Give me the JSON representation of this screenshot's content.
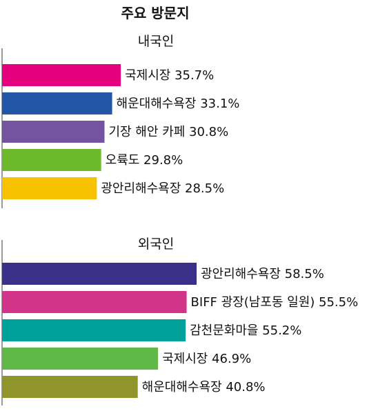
{
  "chart_data": {
    "type": "bar",
    "orientation": "horizontal",
    "title": "주요 방문지",
    "panels": [
      {
        "label": "내국인",
        "categories": [
          "국제시장",
          "해운대해수욕장",
          "기장 해안 카페",
          "오륙도",
          "광안리해수욕장"
        ],
        "values": [
          35.7,
          33.1,
          30.8,
          29.8,
          28.5
        ],
        "bar_labels": [
          "국제시장 35.7%",
          "해운대해수욕장 33.1%",
          "기장 해안 카페 30.8%",
          "오륙도 29.8%",
          "광안리해수욕장 28.5%"
        ],
        "colors": [
          "#e5007e",
          "#2356a6",
          "#7453a1",
          "#6cba2c",
          "#f8c200"
        ]
      },
      {
        "label": "외국인",
        "categories": [
          "광안리해수욕장",
          "BIFF 광장(남포동 일원)",
          "감천문화마을",
          "국제시장",
          "해운대해수욕장"
        ],
        "values": [
          58.5,
          55.5,
          55.2,
          46.9,
          40.8
        ],
        "bar_labels": [
          "광안리해수욕장 58.5%",
          "BIFF 광장(남포동 일원) 55.5%",
          "감천문화마을 55.2%",
          "국제시장 46.9%",
          "해운대해수욕장 40.8%"
        ],
        "colors": [
          "#3b318a",
          "#d23489",
          "#00a19a",
          "#5fb848",
          "#8f942b"
        ]
      }
    ],
    "axis_color": "#999999",
    "grid": false,
    "legend": "none"
  }
}
